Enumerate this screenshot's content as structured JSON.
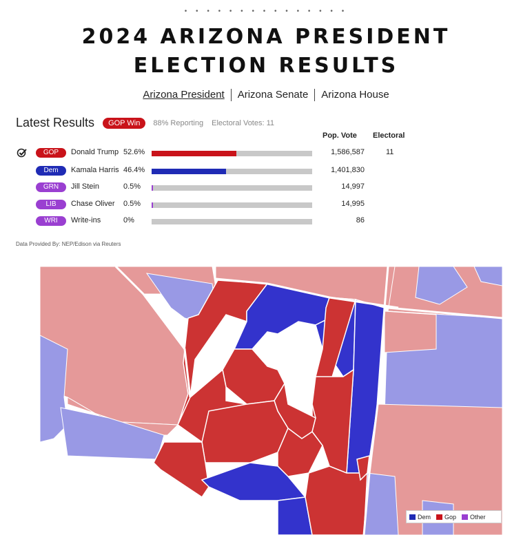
{
  "header": {
    "dots": "• • • • • • • • • • • • • • •",
    "title": "2024 ARIZONA PRESIDENT ELECTION RESULTS"
  },
  "nav": {
    "items": [
      {
        "label": "Arizona President",
        "active": true
      },
      {
        "label": "Arizona Senate",
        "active": false
      },
      {
        "label": "Arizona House",
        "active": false
      }
    ]
  },
  "results": {
    "heading": "Latest Results",
    "win_badge": "GOP Win",
    "reporting": "88% Reporting",
    "electoral_text": "Electoral Votes: 11",
    "col_pop_vote": "Pop. Vote",
    "col_electoral": "Electoral",
    "candidates": [
      {
        "party": "GOP",
        "name": "Donald Trump",
        "pct": "52.6%",
        "share": 52.6,
        "votes": "1,586,587",
        "electoral": "11",
        "winner": true
      },
      {
        "party": "Dem",
        "name": "Kamala Harris",
        "pct": "46.4%",
        "share": 46.4,
        "votes": "1,401,830",
        "electoral": "",
        "winner": false
      },
      {
        "party": "GRN",
        "name": "Jill Stein",
        "pct": "0.5%",
        "share": 0.5,
        "votes": "14,997",
        "electoral": "",
        "winner": false
      },
      {
        "party": "LIB",
        "name": "Chase Oliver",
        "pct": "0.5%",
        "share": 0.5,
        "votes": "14,995",
        "electoral": "",
        "winner": false
      },
      {
        "party": "WRI",
        "name": "Write-ins",
        "pct": "0%",
        "share": 0,
        "votes": "86",
        "electoral": "",
        "winner": false
      }
    ],
    "source": "Data Provided By: NEP/Edison via Reuters"
  },
  "colors": {
    "gop": "#c9131a",
    "dem": "#1f2bb5",
    "other": "#9a3fd1",
    "map_gop_strong": "#cc3333",
    "map_dem_strong": "#3333cc",
    "map_gop_light": "#e59999",
    "map_dem_light": "#9999e5"
  },
  "legend": {
    "dem": "Dem",
    "gop": "Gop",
    "other": "Other"
  }
}
